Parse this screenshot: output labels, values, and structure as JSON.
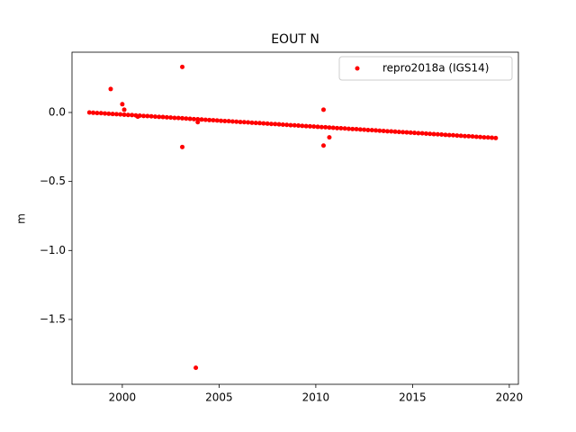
{
  "chart_data": {
    "type": "scatter",
    "title": "EOUT N",
    "y_label": "m",
    "xlim": [
      1997.4,
      2020.47
    ],
    "ylim": [
      -1.97,
      0.437
    ],
    "xticks": [
      2000,
      2005,
      2010,
      2015,
      2020
    ],
    "yticks": [
      {
        "value": 0.0,
        "label": "0.0"
      },
      {
        "value": -0.5,
        "label": "−0.5"
      },
      {
        "value": -1.0,
        "label": "−1.0"
      },
      {
        "value": -1.5,
        "label": "−1.5"
      }
    ],
    "legend": "upper right",
    "series": [
      {
        "name": "repro2018a (IGS14)",
        "color": "#ff0000",
        "x": [
          1998.3,
          1998.5,
          1998.7,
          1998.9,
          1999.1,
          1999.3,
          1999.5,
          1999.7,
          1999.9,
          2000.1,
          2000.3,
          2000.5,
          2000.7,
          2000.9,
          2001.1,
          2001.3,
          2001.5,
          2001.7,
          2001.9,
          2002.1,
          2002.3,
          2002.5,
          2002.7,
          2002.9,
          2003.1,
          2003.3,
          2003.5,
          2003.7,
          2003.9,
          2004.1,
          2004.3,
          2004.5,
          2004.7,
          2004.9,
          2005.1,
          2005.3,
          2005.5,
          2005.7,
          2005.9,
          2006.1,
          2006.3,
          2006.5,
          2006.7,
          2006.9,
          2007.1,
          2007.3,
          2007.5,
          2007.7,
          2007.9,
          2008.1,
          2008.3,
          2008.5,
          2008.7,
          2008.9,
          2009.1,
          2009.3,
          2009.5,
          2009.7,
          2009.9,
          2010.1,
          2010.3,
          2010.5,
          2010.7,
          2010.9,
          2011.1,
          2011.3,
          2011.5,
          2011.7,
          2011.9,
          2012.1,
          2012.3,
          2012.5,
          2012.7,
          2012.9,
          2013.1,
          2013.3,
          2013.5,
          2013.7,
          2013.9,
          2014.1,
          2014.3,
          2014.5,
          2014.7,
          2014.9,
          2015.1,
          2015.3,
          2015.5,
          2015.7,
          2015.9,
          2016.1,
          2016.3,
          2016.5,
          2016.7,
          2016.9,
          2017.1,
          2017.3,
          2017.5,
          2017.7,
          2017.9,
          2018.1,
          2018.3,
          2018.5,
          2018.7,
          2018.9,
          2019.1,
          2019.3,
          1999.4,
          2000.0,
          2000.1,
          2000.8,
          2003.1,
          2003.1,
          2003.8,
          2003.9,
          2010.4,
          2010.4,
          2010.7
        ],
        "values": [
          0,
          -0.002,
          -0.004,
          -0.005,
          -0.007,
          -0.009,
          -0.011,
          -0.012,
          -0.014,
          -0.016,
          -0.018,
          -0.019,
          -0.021,
          -0.023,
          -0.025,
          -0.026,
          -0.028,
          -0.03,
          -0.032,
          -0.033,
          -0.035,
          -0.037,
          -0.039,
          -0.04,
          -0.042,
          -0.044,
          -0.046,
          -0.048,
          -0.049,
          -0.051,
          -0.053,
          -0.055,
          -0.056,
          -0.058,
          -0.06,
          -0.062,
          -0.063,
          -0.065,
          -0.067,
          -0.069,
          -0.07,
          -0.072,
          -0.074,
          -0.076,
          -0.077,
          -0.079,
          -0.081,
          -0.083,
          -0.084,
          -0.086,
          -0.088,
          -0.09,
          -0.092,
          -0.093,
          -0.095,
          -0.097,
          -0.099,
          -0.1,
          -0.102,
          -0.104,
          -0.106,
          -0.107,
          -0.109,
          -0.111,
          -0.113,
          -0.114,
          -0.116,
          -0.118,
          -0.12,
          -0.121,
          -0.123,
          -0.125,
          -0.127,
          -0.128,
          -0.13,
          -0.132,
          -0.134,
          -0.136,
          -0.137,
          -0.139,
          -0.141,
          -0.143,
          -0.144,
          -0.146,
          -0.148,
          -0.15,
          -0.151,
          -0.153,
          -0.155,
          -0.157,
          -0.158,
          -0.16,
          -0.162,
          -0.164,
          -0.165,
          -0.167,
          -0.169,
          -0.171,
          -0.172,
          -0.174,
          -0.176,
          -0.178,
          -0.18,
          -0.181,
          -0.183,
          -0.185,
          0.17,
          0.06,
          0.02,
          -0.03,
          0.33,
          -0.25,
          -1.85,
          -0.07,
          0.02,
          -0.24,
          -0.18
        ]
      }
    ]
  }
}
